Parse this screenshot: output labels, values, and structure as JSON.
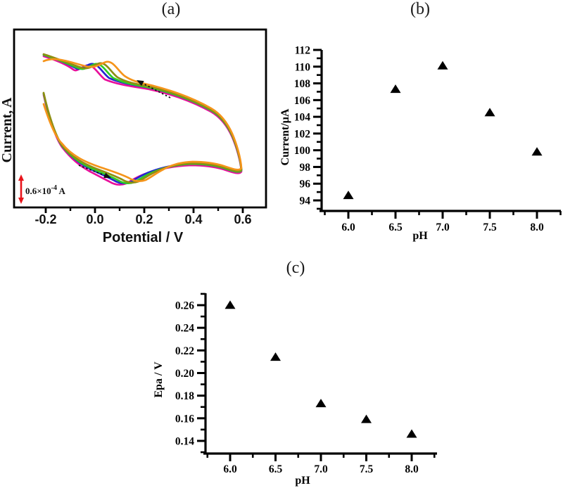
{
  "chart_data": [
    {
      "id": "panel-a",
      "type": "line",
      "title": "(a)",
      "xlabel": "Potential / V",
      "ylabel": "Current, A",
      "xlim": [
        -0.33,
        0.69
      ],
      "x_ticks": {
        "major_values": [
          -0.2,
          0.0,
          0.2,
          0.4,
          0.6
        ],
        "major_labels": [
          "-0.2",
          "0.0",
          "0.2",
          "0.4",
          "0.6"
        ],
        "minor_values": [
          -0.1,
          0.1,
          0.3,
          0.5
        ]
      },
      "scale_bar": {
        "base": "0.6×10",
        "sup": "-4",
        "unit": " A",
        "color": "#e8141b"
      },
      "series": [
        {
          "name": "cv-curve-magenta",
          "color": "#e8109b",
          "peak_shift": -13,
          "dy": 2,
          "start_dy": 0,
          "end_dy": 0
        },
        {
          "name": "cv-curve-blue",
          "color": "#2325d2",
          "peak_shift": -7,
          "dy": 0,
          "start_dy": 0,
          "end_dy": 0
        },
        {
          "name": "cv-curve-green",
          "color": "#2ccc25",
          "peak_shift": -1,
          "dy": 0,
          "start_dy": 0,
          "end_dy": 0
        },
        {
          "name": "cv-curve-dark-yellow",
          "color": "#8e8e12",
          "peak_shift": 5,
          "dy": -1,
          "start_dy": 0,
          "end_dy": 0
        },
        {
          "name": "cv-curve-orange",
          "color": "#f5941a",
          "peak_shift": 15,
          "dy": -3,
          "start_dy": 12,
          "end_dy": 18
        }
      ],
      "annotations": {
        "scan_arrows": 2,
        "arrow_style": "dashed-black"
      }
    },
    {
      "id": "panel-b",
      "type": "scatter",
      "title": "(b)",
      "xlabel": "pH",
      "ylabel": "Current/µA",
      "x": [
        6.0,
        6.5,
        7.0,
        7.5,
        8.0
      ],
      "y": [
        94.6,
        107.3,
        110.1,
        104.5,
        99.8
      ],
      "marker": "filled-triangle-up",
      "marker_color": "#000000",
      "xlim": [
        5.72,
        8.3
      ],
      "ylim": [
        92.7,
        112
      ],
      "x_ticks": {
        "major_values": [
          6.0,
          6.5,
          7.0,
          7.5,
          8.0
        ],
        "major_labels": [
          "6.0",
          "6.5",
          "7.0",
          "7.5",
          "8.0"
        ],
        "minor_values": [
          5.75,
          6.25,
          6.75,
          7.25,
          7.75,
          8.25
        ]
      },
      "y_ticks": {
        "major_values": [
          94,
          96,
          98,
          100,
          102,
          104,
          106,
          108,
          110,
          112
        ],
        "major_labels": [
          "94",
          "96",
          "98",
          "100",
          "102",
          "104",
          "106",
          "108",
          "110",
          "112"
        ],
        "minor_values": [
          93,
          95,
          97,
          99,
          101,
          103,
          105,
          107,
          109,
          111
        ]
      },
      "grid": false,
      "legend": false
    },
    {
      "id": "panel-c",
      "type": "scatter",
      "title": "(c)",
      "xlabel": "pH",
      "ylabel": "Epa / V",
      "x": [
        6.0,
        6.5,
        7.0,
        7.5,
        8.0
      ],
      "y": [
        0.26,
        0.214,
        0.173,
        0.159,
        0.146
      ],
      "marker": "filled-triangle-up",
      "marker_color": "#000000",
      "xlim": [
        5.73,
        8.28
      ],
      "ylim": [
        0.1225,
        0.2755
      ],
      "x_ticks": {
        "major_values": [
          6.0,
          6.5,
          7.0,
          7.5,
          8.0
        ],
        "major_labels": [
          "6.0",
          "6.5",
          "7.0",
          "7.5",
          "8.0"
        ],
        "minor_values": [
          5.75,
          6.25,
          6.75,
          7.25,
          7.75,
          8.25
        ]
      },
      "y_ticks": {
        "major_values": [
          0.14,
          0.16,
          0.18,
          0.2,
          0.22,
          0.24,
          0.26
        ],
        "major_labels": [
          "0.14",
          "0.16",
          "0.18",
          "0.20",
          "0.22",
          "0.24",
          "0.26"
        ],
        "minor_values": [
          0.13,
          0.15,
          0.17,
          0.19,
          0.21,
          0.23,
          0.25,
          0.27
        ]
      },
      "grid": false,
      "legend": false
    }
  ]
}
